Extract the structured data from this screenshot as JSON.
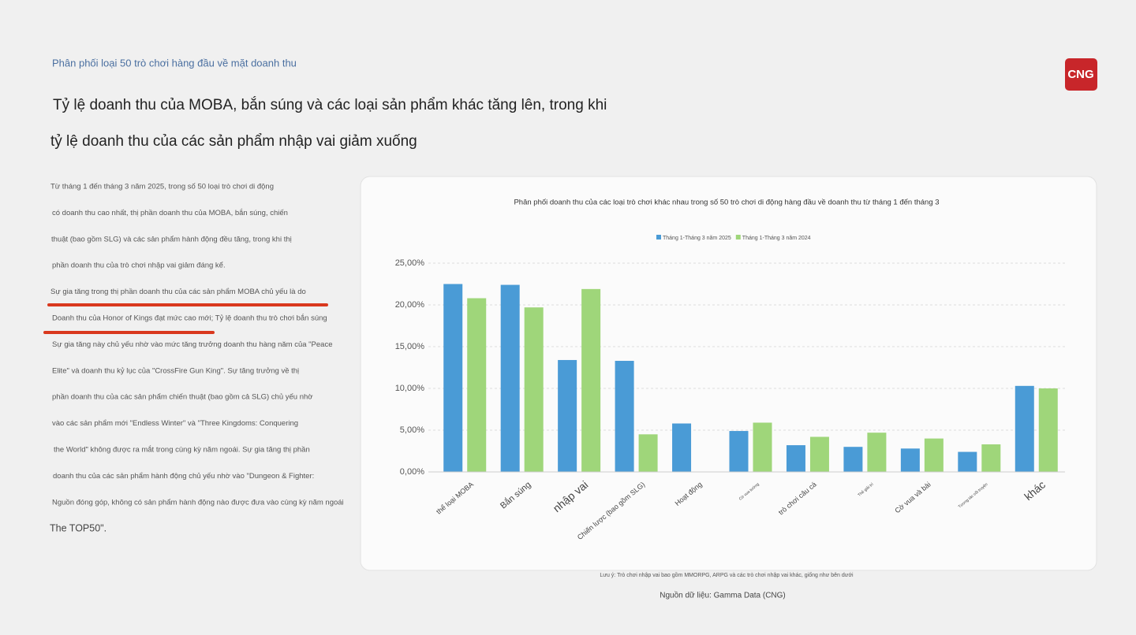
{
  "header": {
    "kicker": "Phân phối loại 50 trò chơi hàng đầu về mặt doanh thu",
    "title_lines": [
      "Tỷ lệ doanh thu của MOBA, bắn súng và các loại sản phẩm khác tăng lên, trong khi",
      "tỷ lệ doanh thu của các sản phẩm nhập vai giảm xuống"
    ],
    "logo": "CNG"
  },
  "body": {
    "lines": [
      "Từ tháng 1 đến tháng 3 năm 2025, trong số 50 loại trò chơi di động",
      "có doanh thu cao nhất, thị phần doanh thu của MOBA, bắn súng, chiến",
      "thuật (bao gồm SLG) và các sản phẩm hành động đều tăng, trong khi thị",
      "phần doanh thu của trò chơi nhập vai giảm đáng kể.",
      "Sự gia tăng trong thị phần doanh thu của các sản phẩm MOBA chủ yếu là do",
      "Doanh thu của Honor of Kings đạt mức cao mới; Tỷ lệ doanh thu trò chơi bắn súng",
      "Sự gia tăng này chủ yếu nhờ vào mức tăng trưởng doanh thu hàng năm của \"Peace",
      "Elite\" và doanh thu kỷ lục của \"CrossFire Gun King\". Sự tăng trưởng về thị",
      "phần doanh thu của các sản phẩm chiến thuật (bao gồm cả SLG) chủ yếu nhờ",
      "vào các sản phẩm mới \"Endless Winter\" và \"Three Kingdoms: Conquering",
      "the World\" không được ra mắt trong cùng kỳ năm ngoái. Sự gia tăng thị phần",
      "doanh thu của các sản phẩm hành động chủ yếu nhờ vào \"Dungeon & Fighter:",
      "Nguồn đóng góp, không có sản phẩm hành động nào được đưa vào cùng kỳ năm ngoái",
      "The TOP50\"."
    ]
  },
  "chart_data": {
    "type": "bar",
    "title": "Phân phối doanh thu của các loại trò chơi khác nhau trong số 50 trò chơi di động hàng đầu về doanh thu từ tháng 1 đến tháng 3",
    "categories": [
      "thể loại MOBA",
      "Bắn súng",
      "nhập vai",
      "Chiến lược (bao gồm SLG)",
      "Hoạt động",
      "Cờ vua tướng",
      "trò chơi câu cá",
      "Thẻ giải trí",
      "Cờ vua và bài",
      "Tương tác cốt truyện",
      "khác"
    ],
    "series": [
      {
        "name": "Tháng 1-Tháng 3 năm 2025",
        "color": "#4a9bd6",
        "values": [
          22.5,
          22.4,
          13.4,
          13.3,
          5.8,
          4.9,
          3.2,
          3.0,
          2.8,
          2.4,
          10.3
        ]
      },
      {
        "name": "Tháng 1-Tháng 3 năm 2024",
        "color": "#9fd67a",
        "values": [
          20.8,
          19.7,
          21.9,
          4.5,
          null,
          5.9,
          4.2,
          4.7,
          4.0,
          3.3,
          10.0
        ]
      }
    ],
    "ylim": [
      0,
      25
    ],
    "yticks": [
      {
        "value": 0,
        "label": "0,00%"
      },
      {
        "value": 5,
        "label": "5,00%"
      },
      {
        "value": 10,
        "label": "10,00%"
      },
      {
        "value": 15,
        "label": "15,00%"
      },
      {
        "value": 20,
        "label": "20,00%"
      },
      {
        "value": 25,
        "label": "25,00%"
      }
    ],
    "grid": true,
    "note": "Lưu ý: Trò chơi nhập vai bao gồm MMORPG, ARPG và các trò chơi nhập vai khác, giống như bên dưới",
    "source": "Nguồn dữ liệu: Gamma Data (CNG)"
  }
}
